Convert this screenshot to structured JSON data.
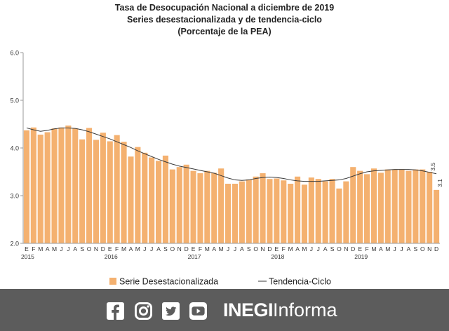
{
  "title_lines": [
    "Tasa de Desocupación Nacional a diciembre de 2019",
    "Series desestacionalizada y de tendencia-ciclo",
    "(Porcentaje de la PEA)"
  ],
  "colors": {
    "bar": "#f4b170",
    "trend": "#3a3a3a",
    "footer": "#5c5c5c"
  },
  "chart_data": {
    "type": "bar",
    "y_ticks": [
      "6.0",
      "5.0",
      "4.0",
      "3.0",
      "2.0"
    ],
    "ylim": [
      2.0,
      6.0
    ],
    "grid": false,
    "legend_position": "bottom",
    "categories": [
      "E",
      "F",
      "M",
      "A",
      "M",
      "J",
      "J",
      "A",
      "S",
      "O",
      "N",
      "D",
      "E",
      "F",
      "M",
      "A",
      "M",
      "J",
      "J",
      "A",
      "S",
      "O",
      "N",
      "D",
      "E",
      "F",
      "M",
      "A",
      "M",
      "J",
      "J",
      "A",
      "S",
      "O",
      "N",
      "D",
      "E",
      "F",
      "M",
      "A",
      "M",
      "J",
      "J",
      "A",
      "S",
      "O",
      "N",
      "D",
      "E",
      "F",
      "M",
      "A",
      "M",
      "J",
      "J",
      "A",
      "S",
      "O",
      "N",
      "D"
    ],
    "years": [
      "2015",
      "2016",
      "2017",
      "2018",
      "2019"
    ],
    "series": [
      {
        "name": "Serie Desestacionalizada",
        "type": "bar",
        "values": [
          4.37,
          4.43,
          4.28,
          4.33,
          4.41,
          4.43,
          4.47,
          4.41,
          4.18,
          4.42,
          4.17,
          4.32,
          4.14,
          4.27,
          4.13,
          3.82,
          4.02,
          3.9,
          3.8,
          3.73,
          3.84,
          3.55,
          3.6,
          3.65,
          3.52,
          3.47,
          3.52,
          3.48,
          3.57,
          3.25,
          3.25,
          3.3,
          3.34,
          3.4,
          3.47,
          3.35,
          3.36,
          3.32,
          3.25,
          3.4,
          3.23,
          3.38,
          3.35,
          3.3,
          3.35,
          3.15,
          3.3,
          3.6,
          3.52,
          3.45,
          3.57,
          3.48,
          3.55,
          3.55,
          3.55,
          3.52,
          3.55,
          3.55,
          3.5,
          3.12
        ]
      },
      {
        "name": "Tendencia-Ciclo",
        "type": "line",
        "values": [
          4.42,
          4.38,
          4.35,
          4.37,
          4.4,
          4.42,
          4.42,
          4.41,
          4.38,
          4.34,
          4.29,
          4.24,
          4.19,
          4.13,
          4.07,
          4.01,
          3.94,
          3.88,
          3.82,
          3.76,
          3.71,
          3.66,
          3.62,
          3.59,
          3.56,
          3.53,
          3.5,
          3.47,
          3.42,
          3.37,
          3.33,
          3.32,
          3.33,
          3.36,
          3.38,
          3.39,
          3.38,
          3.36,
          3.33,
          3.31,
          3.3,
          3.3,
          3.3,
          3.31,
          3.32,
          3.33,
          3.36,
          3.41,
          3.46,
          3.5,
          3.52,
          3.53,
          3.54,
          3.55,
          3.55,
          3.55,
          3.54,
          3.52,
          3.49,
          3.46
        ]
      }
    ],
    "data_labels": [
      "3.5",
      "3.1"
    ]
  },
  "legend": {
    "bar_label": "Serie Desestacionalizada",
    "line_label": "Tendencia-Ciclo"
  },
  "footer": {
    "brand_bold": "INEGI",
    "brand_rest": "Informa",
    "icons": [
      "facebook-icon",
      "instagram-icon",
      "twitter-icon",
      "youtube-icon"
    ]
  }
}
